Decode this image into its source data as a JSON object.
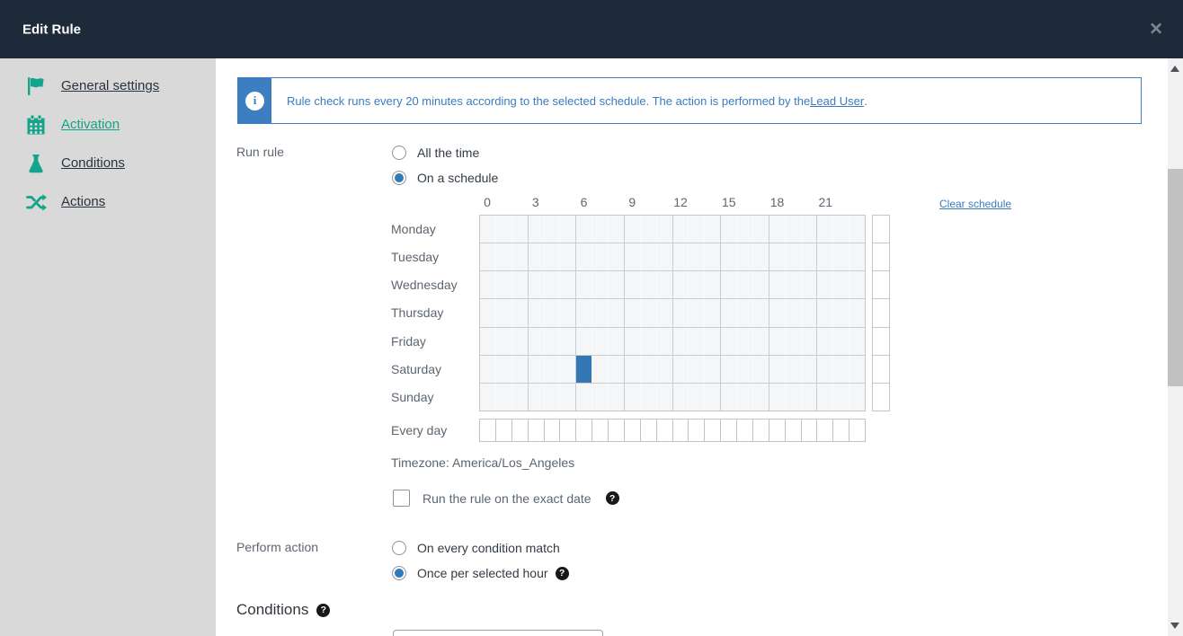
{
  "header": {
    "title": "Edit Rule",
    "close_glyph": "✕"
  },
  "sidebar": {
    "items": [
      {
        "label": "General settings",
        "icon": "flag",
        "active": false
      },
      {
        "label": "Activation",
        "icon": "calendar",
        "active": true
      },
      {
        "label": "Conditions",
        "icon": "flask",
        "active": false
      },
      {
        "label": "Actions",
        "icon": "shuffle",
        "active": false
      }
    ]
  },
  "banner": {
    "text": "Rule check runs every 20 minutes according to the selected schedule. The action is performed by the ",
    "link": "Lead User",
    "suffix": "."
  },
  "run_rule": {
    "label": "Run rule",
    "options": [
      {
        "label": "All the time",
        "selected": false
      },
      {
        "label": "On a schedule",
        "selected": true
      }
    ]
  },
  "schedule": {
    "hour_labels": [
      "0",
      "3",
      "6",
      "9",
      "12",
      "15",
      "18",
      "21"
    ],
    "days": [
      "Monday",
      "Tuesday",
      "Wednesday",
      "Thursday",
      "Friday",
      "Saturday",
      "Sunday"
    ],
    "every_day_label": "Every day",
    "clear_link": "Clear schedule",
    "timezone": "Timezone: America/Los_Angeles",
    "selected_cells": [
      {
        "day": "Saturday",
        "day_index": 5,
        "hour": 6
      }
    ],
    "colors": {
      "selected_cell": "#3377b5",
      "cell_bg": "#f5f6f8"
    }
  },
  "exact_date": {
    "label": "Run the rule on the exact date",
    "checked": false,
    "help_glyph": "?"
  },
  "perform_action": {
    "label": "Perform action",
    "options": [
      {
        "label": "On every condition match",
        "selected": false
      },
      {
        "label": "Once per selected hour",
        "selected": true,
        "has_help": true
      }
    ],
    "help_glyph": "?"
  },
  "conditions": {
    "heading": "Conditions",
    "help_glyph": "?"
  },
  "theme": {
    "accent_teal": "#14a38b",
    "banner_blue": "#3d7ec0",
    "header_bg": "#1e2a3a"
  }
}
